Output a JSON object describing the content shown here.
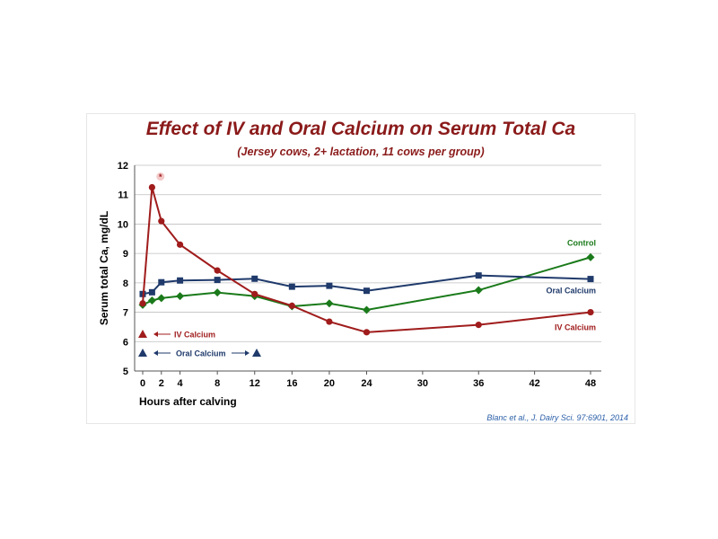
{
  "chart_data": {
    "type": "line",
    "title": "Effect of IV and Oral Calcium on Serum Total Ca",
    "subtitle": "(Jersey cows, 2+ lactation, 11 cows per group)",
    "xlabel": "Hours after  calving",
    "ylabel": "Serum total Ca, mg/dL",
    "xlim": [
      0,
      48
    ],
    "ylim": [
      5,
      12
    ],
    "x_ticks": [
      0,
      2,
      4,
      8,
      12,
      16,
      20,
      24,
      30,
      36,
      42,
      48
    ],
    "y_ticks": [
      5,
      6,
      7,
      8,
      9,
      10,
      11,
      12
    ],
    "grid": "horizontal",
    "series": [
      {
        "name": "Control",
        "color": "#1a7a1a",
        "marker": "diamond",
        "x": [
          0,
          1,
          2,
          4,
          8,
          12,
          16,
          20,
          24,
          36,
          48
        ],
        "values": [
          7.25,
          7.4,
          7.48,
          7.55,
          7.67,
          7.55,
          7.2,
          7.3,
          7.08,
          7.75,
          8.87
        ]
      },
      {
        "name": "Oral Calcium",
        "color": "#1f3a6b",
        "marker": "square",
        "x": [
          0,
          1,
          2,
          4,
          8,
          12,
          16,
          20,
          24,
          36,
          48
        ],
        "values": [
          7.62,
          7.68,
          8.02,
          8.08,
          8.1,
          8.14,
          7.87,
          7.9,
          7.73,
          8.25,
          8.13
        ]
      },
      {
        "name": "IV Calcium",
        "color": "#a01c1c",
        "marker": "circle",
        "x": [
          0,
          1,
          2,
          4,
          8,
          12,
          16,
          20,
          24,
          36,
          48
        ],
        "values": [
          7.3,
          11.25,
          10.1,
          9.3,
          8.42,
          7.62,
          7.22,
          6.68,
          6.32,
          6.57,
          7.0
        ]
      }
    ],
    "annotations": {
      "iv_label": "IV Calcium",
      "oral_label": "Oral Calcium",
      "significance_marker": "*"
    },
    "citation": "Blanc et al., J. Dairy Sci.  97:6901, 2014"
  }
}
